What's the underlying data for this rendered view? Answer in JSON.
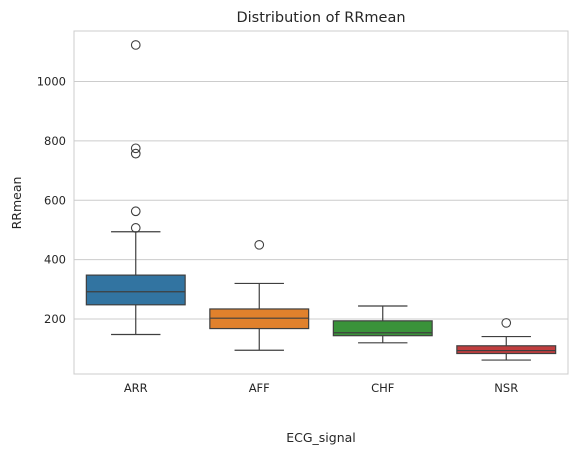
{
  "chart_data": {
    "type": "box",
    "title": "Distribution of RRmean",
    "xlabel": "ECG_signal",
    "ylabel": "RRmean",
    "ylim": [
      15,
      1170
    ],
    "yticks": [
      200,
      400,
      600,
      800,
      1000
    ],
    "grid": "horizontal",
    "categories": [
      "ARR",
      "AFF",
      "CHF",
      "NSR"
    ],
    "boxes": [
      {
        "name": "ARR",
        "color": "#3274a1",
        "whisker_low": 148,
        "q1": 248,
        "median": 292,
        "q3": 348,
        "whisker_high": 494,
        "outliers": [
          507,
          563,
          757,
          775,
          1123
        ]
      },
      {
        "name": "AFF",
        "color": "#e1812c",
        "whisker_low": 95,
        "q1": 168,
        "median": 203,
        "q3": 234,
        "whisker_high": 320,
        "outliers": [
          450
        ]
      },
      {
        "name": "CHF",
        "color": "#3a923a",
        "whisker_low": 120,
        "q1": 144,
        "median": 154,
        "q3": 194,
        "whisker_high": 244,
        "outliers": []
      },
      {
        "name": "NSR",
        "color": "#c03d3e",
        "whisker_low": 62,
        "q1": 84,
        "median": 94,
        "q3": 110,
        "whisker_high": 141,
        "outliers": [
          187
        ]
      }
    ]
  }
}
